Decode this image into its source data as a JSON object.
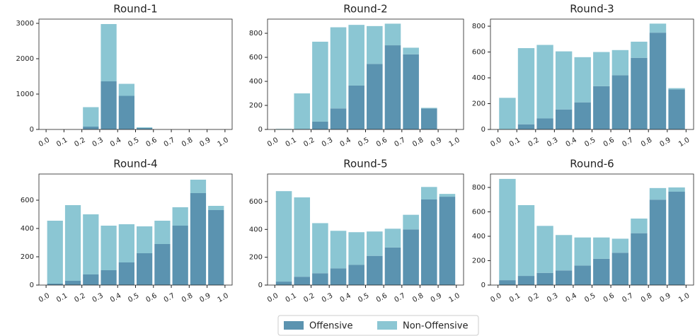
{
  "chart_data": [
    {
      "type": "histogram",
      "title": "Round-1",
      "bins": [
        0,
        0.1,
        0.2,
        0.3,
        0.4,
        0.5,
        0.6,
        0.7,
        0.8,
        0.9,
        1
      ],
      "series": [
        {
          "name": "Offensive",
          "color": "#5b93b0",
          "values": [
            0,
            0,
            80,
            1360,
            950,
            40,
            0,
            0,
            0,
            0
          ]
        },
        {
          "name": "Non-Offensive",
          "color": "#8bc6d3",
          "values": [
            0,
            0,
            550,
            1620,
            340,
            20,
            0,
            0,
            0,
            0
          ]
        }
      ],
      "xlim": [
        -0.04,
        1.04
      ],
      "ylim": [
        0,
        3120
      ],
      "yticks": [
        0,
        1000,
        2000,
        3000
      ],
      "xticks": [
        {
          "value": 0,
          "label": "0.0"
        },
        0.1,
        0.2,
        0.3,
        0.4,
        0.5,
        0.6,
        0.7,
        0.8,
        0.9,
        {
          "value": 1,
          "label": "1.0"
        }
      ]
    },
    {
      "type": "histogram",
      "title": "Round-2",
      "bins": [
        0,
        0.1,
        0.2,
        0.3,
        0.4,
        0.5,
        0.6,
        0.7,
        0.8,
        0.9,
        1
      ],
      "series": [
        {
          "name": "Offensive",
          "color": "#5b93b0",
          "values": [
            0,
            5,
            65,
            175,
            365,
            545,
            700,
            625,
            175,
            0
          ]
        },
        {
          "name": "Non-Offensive",
          "color": "#8bc6d3",
          "values": [
            5,
            295,
            665,
            675,
            505,
            315,
            180,
            55,
            5,
            0
          ]
        }
      ],
      "xlim": [
        -0.04,
        1.04
      ],
      "ylim": [
        0,
        918
      ],
      "yticks": [
        0,
        200,
        400,
        600,
        800
      ],
      "xticks": [
        {
          "value": 0,
          "label": "0.0"
        },
        0.1,
        0.2,
        0.3,
        0.4,
        0.5,
        0.6,
        0.7,
        0.8,
        0.9,
        {
          "value": 1,
          "label": "1.0"
        }
      ]
    },
    {
      "type": "histogram",
      "title": "Round-3",
      "bins": [
        0,
        0.1,
        0.2,
        0.3,
        0.4,
        0.5,
        0.6,
        0.7,
        0.8,
        0.9,
        1
      ],
      "series": [
        {
          "name": "Offensive",
          "color": "#5b93b0",
          "values": [
            0,
            40,
            85,
            155,
            210,
            335,
            420,
            555,
            750,
            310
          ]
        },
        {
          "name": "Non-Offensive",
          "color": "#8bc6d3",
          "values": [
            245,
            590,
            570,
            450,
            350,
            265,
            195,
            125,
            70,
            10
          ]
        }
      ],
      "xlim": [
        -0.04,
        1.04
      ],
      "ylim": [
        0,
        855
      ],
      "yticks": [
        0,
        200,
        400,
        600,
        800
      ],
      "xticks": [
        {
          "value": 0,
          "label": "0.0"
        },
        0.1,
        0.2,
        0.3,
        0.4,
        0.5,
        0.6,
        0.7,
        0.8,
        0.9,
        {
          "value": 1,
          "label": "1.0"
        }
      ]
    },
    {
      "type": "histogram",
      "title": "Round-4",
      "bins": [
        0,
        0.1,
        0.2,
        0.3,
        0.4,
        0.5,
        0.6,
        0.7,
        0.8,
        0.9,
        1
      ],
      "series": [
        {
          "name": "Offensive",
          "color": "#5b93b0",
          "values": [
            10,
            30,
            75,
            105,
            160,
            225,
            290,
            420,
            650,
            530
          ]
        },
        {
          "name": "Non-Offensive",
          "color": "#8bc6d3",
          "values": [
            445,
            535,
            425,
            315,
            270,
            190,
            165,
            130,
            95,
            30
          ]
        }
      ],
      "xlim": [
        -0.04,
        1.04
      ],
      "ylim": [
        0,
        785
      ],
      "yticks": [
        0,
        200,
        400,
        600
      ],
      "xticks": [
        {
          "value": 0,
          "label": "0.0"
        },
        0.1,
        0.2,
        0.3,
        0.4,
        0.5,
        0.6,
        0.7,
        0.8,
        0.9,
        {
          "value": 1,
          "label": "1.0"
        }
      ]
    },
    {
      "type": "histogram",
      "title": "Round-5",
      "bins": [
        0,
        0.1,
        0.2,
        0.3,
        0.4,
        0.5,
        0.6,
        0.7,
        0.8,
        0.9,
        1
      ],
      "series": [
        {
          "name": "Offensive",
          "color": "#5b93b0",
          "values": [
            25,
            60,
            85,
            120,
            145,
            210,
            270,
            400,
            615,
            635
          ]
        },
        {
          "name": "Non-Offensive",
          "color": "#8bc6d3",
          "values": [
            650,
            570,
            360,
            270,
            235,
            175,
            135,
            105,
            90,
            20
          ]
        }
      ],
      "xlim": [
        -0.04,
        1.04
      ],
      "ylim": [
        0,
        798
      ],
      "yticks": [
        0,
        200,
        400,
        600
      ],
      "xticks": [
        {
          "value": 0,
          "label": "0.0"
        },
        0.1,
        0.2,
        0.3,
        0.4,
        0.5,
        0.6,
        0.7,
        0.8,
        0.9,
        {
          "value": 1,
          "label": "1.0"
        }
      ]
    },
    {
      "type": "histogram",
      "title": "Round-6",
      "bins": [
        0,
        0.1,
        0.2,
        0.3,
        0.4,
        0.5,
        0.6,
        0.7,
        0.8,
        0.9,
        1
      ],
      "series": [
        {
          "name": "Offensive",
          "color": "#5b93b0",
          "values": [
            40,
            75,
            100,
            120,
            160,
            215,
            265,
            425,
            700,
            765
          ]
        },
        {
          "name": "Non-Offensive",
          "color": "#8bc6d3",
          "values": [
            830,
            580,
            385,
            290,
            230,
            175,
            115,
            120,
            95,
            35
          ]
        }
      ],
      "xlim": [
        -0.04,
        1.04
      ],
      "ylim": [
        0,
        910
      ],
      "yticks": [
        0,
        200,
        400,
        600,
        800
      ],
      "xticks": [
        {
          "value": 0,
          "label": "0.0"
        },
        0.1,
        0.2,
        0.3,
        0.4,
        0.5,
        0.6,
        0.7,
        0.8,
        0.9,
        {
          "value": 1,
          "label": "1.0"
        }
      ]
    }
  ]
}
